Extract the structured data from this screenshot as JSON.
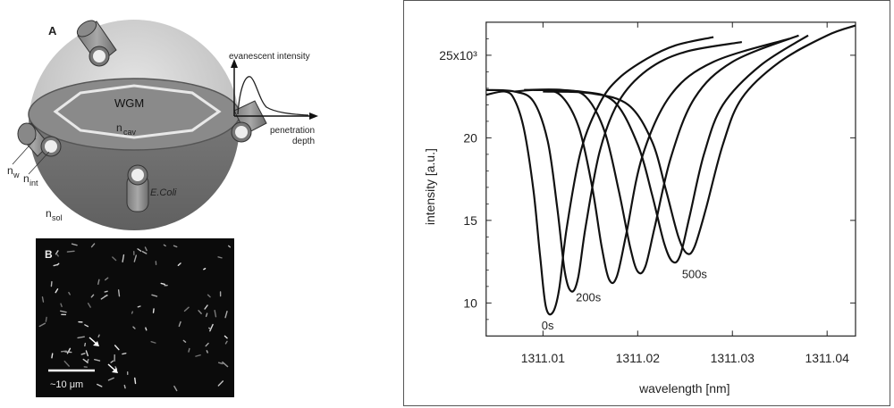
{
  "panel_a": {
    "panel_letter": "A",
    "wgm_label": "WGM",
    "n_cav": "n",
    "n_cav_sub": "cav",
    "n_w": "n",
    "n_w_sub": "w",
    "n_int": "n",
    "n_int_sub": "int",
    "n_sol": "n",
    "n_sol_sub": "sol",
    "e_coli": "E.Coli",
    "evanescent_label": "evanescent intensity",
    "penetration_label_1": "penetration",
    "penetration_label_2": "depth"
  },
  "panel_b": {
    "panel_letter": "B",
    "scale_label": "~10 μm"
  },
  "chart_data": {
    "type": "line",
    "xlabel": "wavelength [nm]",
    "ylabel": "intensity [a.u.]",
    "xlim": [
      1311.004,
      1311.043
    ],
    "ylim": [
      8.0,
      27.0
    ],
    "xticks": [
      1311.01,
      1311.02,
      1311.03,
      1311.04
    ],
    "xtick_labels": [
      "1311.01",
      "1311.02",
      "1311.03",
      "1311.04"
    ],
    "yticks": [
      10,
      15,
      20,
      25
    ],
    "ytick_labels": [
      "10",
      "15",
      "20",
      "25x10³"
    ],
    "series": [
      {
        "x": [
          1311.004,
          1311.006,
          1311.007,
          1311.008,
          1311.009,
          1311.0097,
          1311.0103,
          1311.011,
          1311.0117,
          1311.0125,
          1311.014,
          1311.016,
          1311.018,
          1311.021,
          1311.024,
          1311.028
        ],
        "y": [
          22.6,
          22.8,
          22.3,
          20.5,
          16.8,
          12.8,
          9.8,
          9.4,
          10.8,
          14.5,
          19.2,
          22.1,
          23.6,
          24.8,
          25.6,
          26.1
        ]
      },
      {
        "x": [
          1311.004,
          1311.007,
          1311.009,
          1311.0105,
          1311.0115,
          1311.0123,
          1311.013,
          1311.0137,
          1311.0145,
          1311.016,
          1311.018,
          1311.021,
          1311.025,
          1311.031
        ],
        "y": [
          22.9,
          22.8,
          22.2,
          19.8,
          15.8,
          11.9,
          10.7,
          11.5,
          14.6,
          19.2,
          22.2,
          24.1,
          25.2,
          25.8
        ]
      },
      {
        "x": [
          1311.007,
          1311.01,
          1311.012,
          1311.0138,
          1311.0152,
          1311.0162,
          1311.017,
          1311.0178,
          1311.0188,
          1311.0205,
          1311.0235,
          1311.028,
          1311.036
        ],
        "y": [
          22.8,
          22.9,
          22.5,
          20.6,
          17.0,
          13.4,
          11.4,
          11.6,
          14.2,
          18.9,
          22.6,
          24.6,
          26.0
        ]
      },
      {
        "x": [
          1311.008,
          1311.012,
          1311.0145,
          1311.0165,
          1311.018,
          1311.0192,
          1311.02,
          1311.0208,
          1311.0218,
          1311.0235,
          1311.026,
          1311.03,
          1311.037
        ],
        "y": [
          22.9,
          22.9,
          22.5,
          20.4,
          16.8,
          13.4,
          11.9,
          12.2,
          14.6,
          18.8,
          22.4,
          24.6,
          26.2
        ]
      },
      {
        "x": [
          1311.009,
          1311.014,
          1311.0175,
          1311.02,
          1311.0215,
          1311.0228,
          1311.0237,
          1311.0245,
          1311.0255,
          1311.027,
          1311.029,
          1311.033,
          1311.038
        ],
        "y": [
          22.9,
          22.8,
          22.2,
          19.6,
          16.6,
          13.6,
          12.5,
          12.9,
          15.3,
          19.0,
          22.0,
          24.4,
          26.2
        ]
      },
      {
        "x": [
          1311.01,
          1311.015,
          1311.019,
          1311.0215,
          1311.023,
          1311.0243,
          1311.0252,
          1311.026,
          1311.0272,
          1311.029,
          1311.031,
          1311.035,
          1311.04,
          1311.043
        ],
        "y": [
          22.8,
          22.7,
          22.0,
          19.8,
          16.8,
          14.0,
          13.0,
          13.4,
          15.7,
          19.6,
          22.4,
          24.6,
          26.2,
          26.8
        ]
      }
    ],
    "annotations": [
      {
        "text": "0s",
        "x": 1311.0105,
        "y": 8.4
      },
      {
        "text": "200s",
        "x": 1311.0148,
        "y": 10.1
      },
      {
        "text": "500s",
        "x": 1311.026,
        "y": 11.5
      }
    ]
  }
}
